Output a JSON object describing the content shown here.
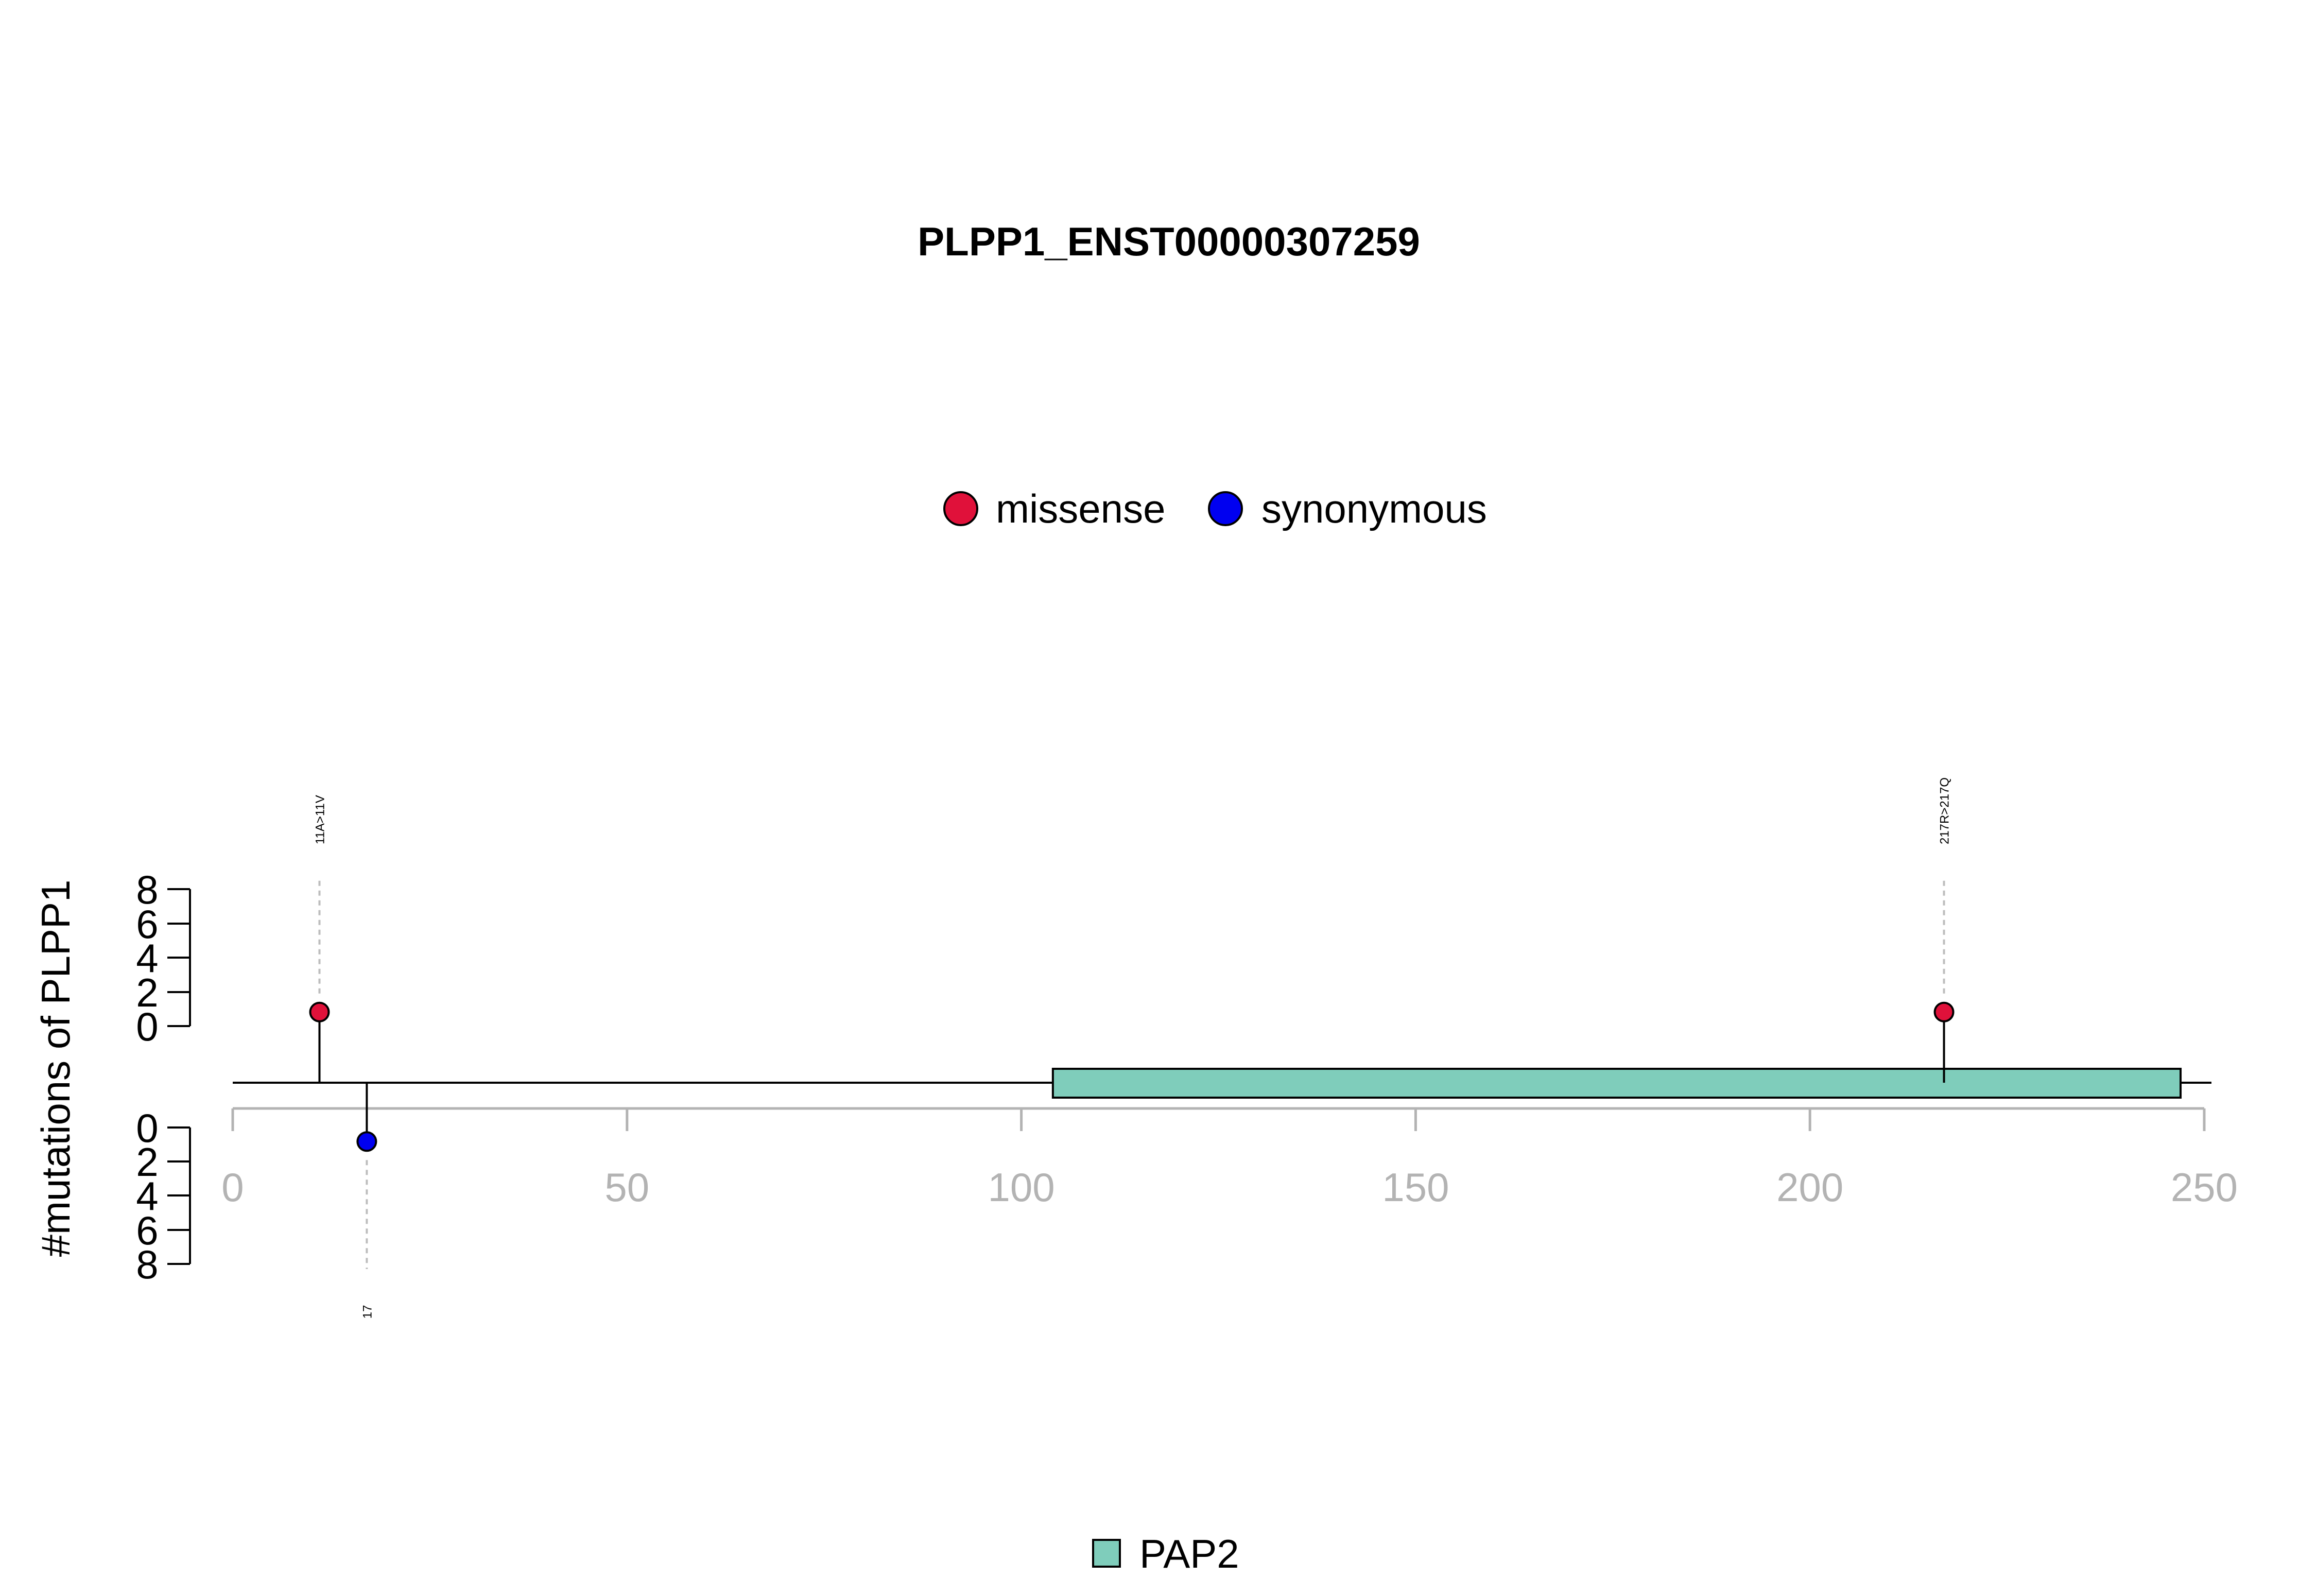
{
  "chart_data": {
    "type": "lollipop",
    "title": "PLPP1_ENST00000307259",
    "ylabel": "#mutations of PLPP1",
    "x_range": [
      0,
      250
    ],
    "x_ticks": [
      "0",
      "50",
      "100",
      "150",
      "200",
      "250"
    ],
    "upper_y_ticks": [
      "8",
      "6",
      "4",
      "2",
      "0"
    ],
    "lower_y_ticks": [
      "0",
      "2",
      "4",
      "6",
      "8"
    ],
    "legend": [
      {
        "label": "missense",
        "color": "#e0113a"
      },
      {
        "label": "synonymous",
        "color": "#0000f0"
      }
    ],
    "mutations": [
      {
        "position": 11,
        "count": 1,
        "type": "missense",
        "direction": "up",
        "label": "11A>11V",
        "color": "#e0113a"
      },
      {
        "position": 217,
        "count": 1,
        "type": "missense",
        "direction": "up",
        "label": "217R>217Q",
        "color": "#e0113a"
      },
      {
        "position": 17,
        "count": 1,
        "type": "synonymous",
        "direction": "down",
        "label": "17",
        "color": "#0000f0"
      }
    ],
    "domains": [
      {
        "name": "PAP2",
        "start": 104,
        "end": 247,
        "color": "#7fcdbb"
      }
    ],
    "protein_length": 250
  }
}
